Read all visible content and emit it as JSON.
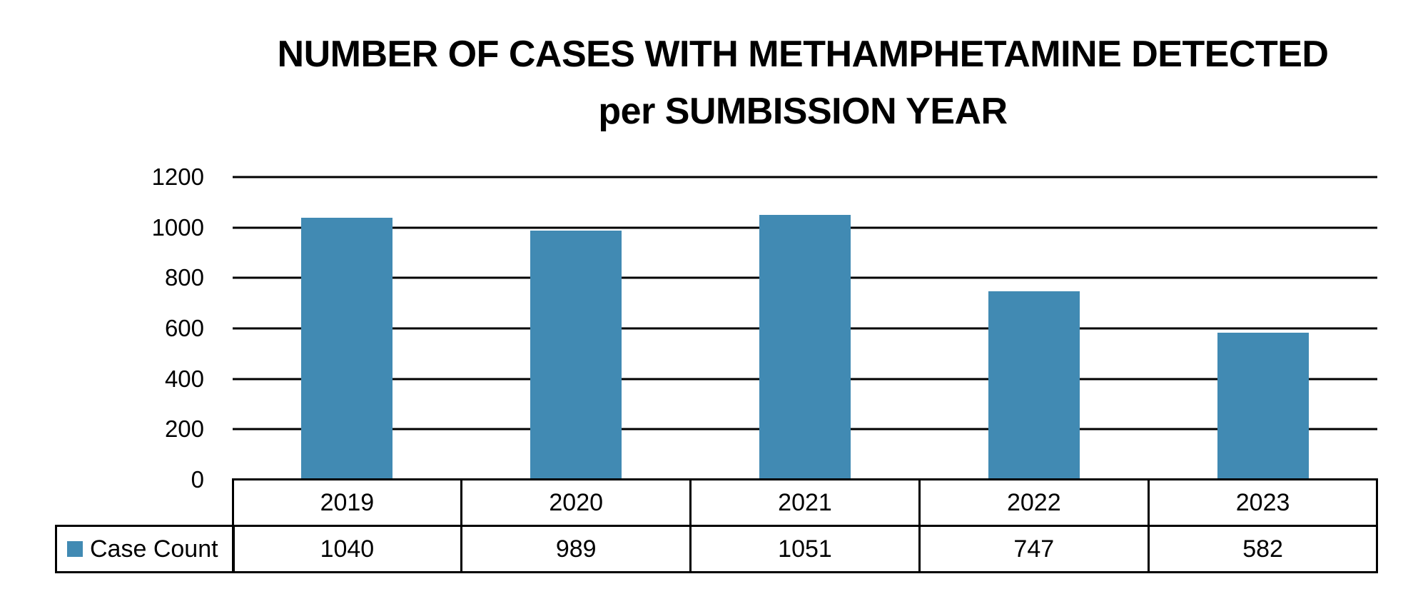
{
  "title": {
    "line1": "NUMBER OF CASES WITH METHAMPHETAMINE DETECTED",
    "line2": "per SUMBISSION YEAR"
  },
  "colors": {
    "bar": "#418AB3",
    "gridline": "#000000",
    "text": "#000000",
    "background": "#FFFFFF"
  },
  "y_axis": {
    "ticks": [
      "0",
      "200",
      "400",
      "600",
      "800",
      "1000",
      "1200"
    ]
  },
  "data_table": {
    "legend_label": "Case Count",
    "categories": [
      "2019",
      "2020",
      "2021",
      "2022",
      "2023"
    ],
    "values": [
      "1040",
      "989",
      "1051",
      "747",
      "582"
    ]
  },
  "chart_data": {
    "type": "bar",
    "title": "NUMBER OF CASES WITH METHAMPHETAMINE DETECTED per SUMBISSION YEAR",
    "categories": [
      "2019",
      "2020",
      "2021",
      "2022",
      "2023"
    ],
    "series": [
      {
        "name": "Case Count",
        "values": [
          1040,
          989,
          1051,
          747,
          582
        ],
        "color": "#418AB3"
      }
    ],
    "xlabel": "",
    "ylabel": "",
    "ylim": [
      0,
      1200
    ],
    "yticks": [
      0,
      200,
      400,
      600,
      800,
      1000,
      1200
    ],
    "grid": true,
    "legend_position": "data table (bottom)",
    "data_table": true
  }
}
